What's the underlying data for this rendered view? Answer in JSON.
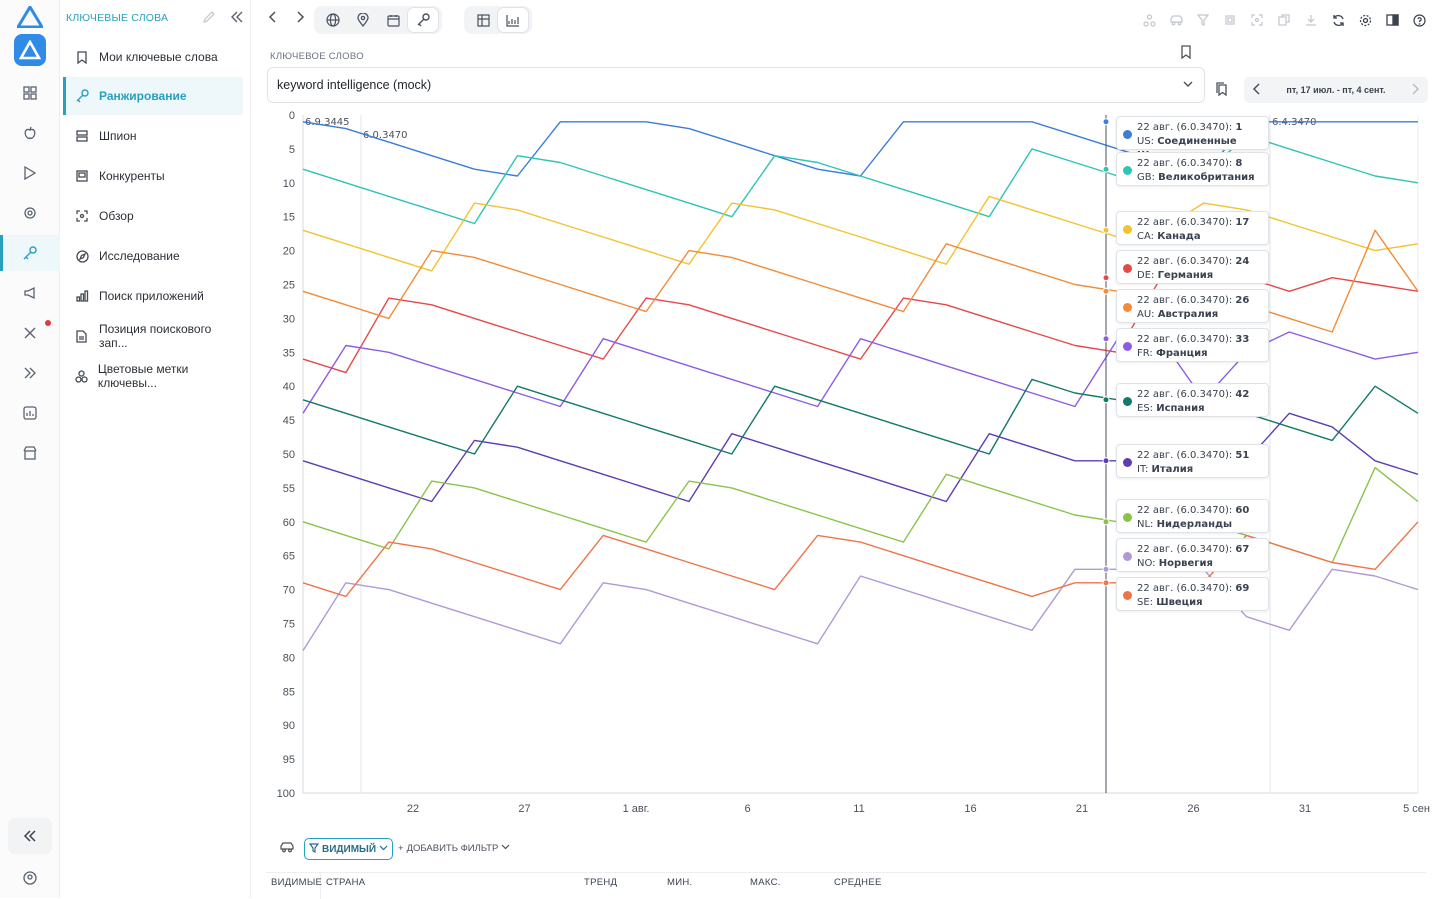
{
  "sidebar": {
    "header": "КЛЮЧЕВЫЕ СЛОВА",
    "items": [
      {
        "label": "Мои ключевые слова",
        "icon": "bookmark-icon",
        "active": false
      },
      {
        "label": "Ранжирование",
        "icon": "key-icon",
        "active": true
      },
      {
        "label": "Шпион",
        "icon": "spy-icon",
        "active": false
      },
      {
        "label": "Конкуренты",
        "icon": "competitors-icon",
        "active": false
      },
      {
        "label": "Обзор",
        "icon": "overview-icon",
        "active": false
      },
      {
        "label": "Исследование",
        "icon": "compass-icon",
        "active": false
      },
      {
        "label": "Поиск приложений",
        "icon": "bar-chart-icon",
        "active": false
      },
      {
        "label": "Позиция поискового зап...",
        "icon": "document-icon",
        "active": false
      },
      {
        "label": "Цветовые метки ключевы...",
        "icon": "color-tags-icon",
        "active": false
      }
    ]
  },
  "keyword": {
    "label": "КЛЮЧЕВОЕ СЛОВО",
    "value": "keyword intelligence (mock)"
  },
  "date_range": "пт, 17 июл. - пт, 4 сент.",
  "filters": {
    "visible": "ВИДИМЫЙ",
    "add": "ДОБАВИТЬ ФИЛЬТР"
  },
  "table_columns": [
    "ВИДИМЫЕ",
    "СТРАНА",
    "ТРЕНД",
    "МИН.",
    "МАКС.",
    "СРЕДНЕЕ"
  ],
  "tooltip_header": "22 авг. (6.0.3470):",
  "chart_data": {
    "type": "line",
    "y_axis": {
      "reversed": true,
      "ticks": [
        0,
        5,
        10,
        15,
        20,
        25,
        30,
        35,
        40,
        45,
        50,
        55,
        60,
        65,
        70,
        75,
        80,
        85,
        90,
        95,
        100
      ],
      "ylim": [
        0,
        100
      ]
    },
    "x_ticks": [
      "22",
      "27",
      "1 авг.",
      "6",
      "11",
      "16",
      "21",
      "26",
      "31",
      "5 сен"
    ],
    "version_annotations": [
      "6.9.3445",
      "6.0.3470",
      "6.4.3470"
    ],
    "hover_date": "22 авг.",
    "series": [
      {
        "code": "US",
        "country": "Соединенные Штаты",
        "rank": 1,
        "color": "#3b7dd8",
        "values": [
          1,
          2,
          4,
          6,
          8,
          9,
          1,
          1,
          1,
          2,
          4,
          6,
          8,
          9,
          1,
          1,
          1,
          1,
          3,
          5,
          7,
          9,
          1,
          1,
          1,
          1,
          1
        ]
      },
      {
        "code": "GB",
        "country": "Великобритания",
        "rank": 8,
        "color": "#2ec4b6",
        "values": [
          8,
          10,
          12,
          14,
          16,
          6,
          7,
          9,
          11,
          13,
          15,
          6,
          7,
          9,
          11,
          13,
          15,
          5,
          7,
          9,
          8,
          9,
          3,
          5,
          7,
          9,
          10
        ]
      },
      {
        "code": "CA",
        "country": "Канада",
        "rank": 17,
        "color": "#f2c230",
        "values": [
          17,
          19,
          21,
          23,
          13,
          14,
          16,
          18,
          20,
          22,
          13,
          14,
          16,
          18,
          20,
          22,
          12,
          14,
          16,
          18,
          17,
          13,
          14,
          16,
          18,
          20,
          19
        ]
      },
      {
        "code": "DE",
        "country": "Германия",
        "rank": 24,
        "color": "#e44a4a",
        "values": [
          36,
          38,
          27,
          28,
          30,
          32,
          34,
          36,
          27,
          28,
          30,
          32,
          34,
          36,
          27,
          28,
          30,
          32,
          34,
          35,
          24,
          22,
          24,
          26,
          24,
          25,
          26
        ]
      },
      {
        "code": "AU",
        "country": "Австралия",
        "rank": 26,
        "color": "#f28c3a",
        "values": [
          26,
          28,
          30,
          20,
          21,
          23,
          25,
          27,
          29,
          20,
          21,
          23,
          25,
          27,
          29,
          19,
          21,
          23,
          25,
          26,
          26,
          26,
          28,
          30,
          32,
          17,
          26
        ]
      },
      {
        "code": "FR",
        "country": "Франция",
        "rank": 33,
        "color": "#8c5ce6",
        "values": [
          44,
          34,
          35,
          37,
          39,
          41,
          43,
          33,
          35,
          37,
          39,
          41,
          43,
          33,
          35,
          37,
          39,
          41,
          43,
          33,
          33,
          42,
          35,
          32,
          34,
          36,
          35
        ]
      },
      {
        "code": "ES",
        "country": "Испания",
        "rank": 42,
        "color": "#127a6a",
        "values": [
          42,
          44,
          46,
          48,
          50,
          40,
          42,
          44,
          46,
          48,
          50,
          40,
          42,
          44,
          46,
          48,
          50,
          39,
          41,
          42,
          42,
          42,
          44,
          46,
          48,
          40,
          44
        ]
      },
      {
        "code": "IT",
        "country": "Италия",
        "rank": 51,
        "color": "#5e3cb5",
        "values": [
          51,
          53,
          55,
          57,
          48,
          49,
          51,
          53,
          55,
          57,
          47,
          49,
          51,
          53,
          55,
          57,
          47,
          49,
          51,
          51,
          51,
          51,
          51,
          44,
          46,
          51,
          53
        ]
      },
      {
        "code": "NL",
        "country": "Нидерланды",
        "rank": 60,
        "color": "#8bc34a",
        "values": [
          60,
          62,
          64,
          54,
          55,
          57,
          59,
          61,
          63,
          54,
          55,
          57,
          59,
          61,
          63,
          53,
          55,
          57,
          59,
          60,
          60,
          60,
          62,
          64,
          66,
          52,
          57
        ]
      },
      {
        "code": "NO",
        "country": "Норвегия",
        "rank": 67,
        "color": "#b09ad6",
        "values": [
          79,
          69,
          70,
          72,
          74,
          76,
          78,
          69,
          70,
          72,
          74,
          76,
          78,
          68,
          70,
          72,
          74,
          76,
          67,
          67,
          67,
          67,
          74,
          76,
          67,
          68,
          70
        ]
      },
      {
        "code": "SE",
        "country": "Швеция",
        "rank": 69,
        "color": "#f0744a",
        "values": [
          69,
          71,
          63,
          64,
          66,
          68,
          70,
          62,
          64,
          66,
          68,
          70,
          62,
          63,
          65,
          67,
          69,
          71,
          69,
          69,
          69,
          69,
          62,
          64,
          66,
          67,
          60
        ]
      }
    ]
  }
}
